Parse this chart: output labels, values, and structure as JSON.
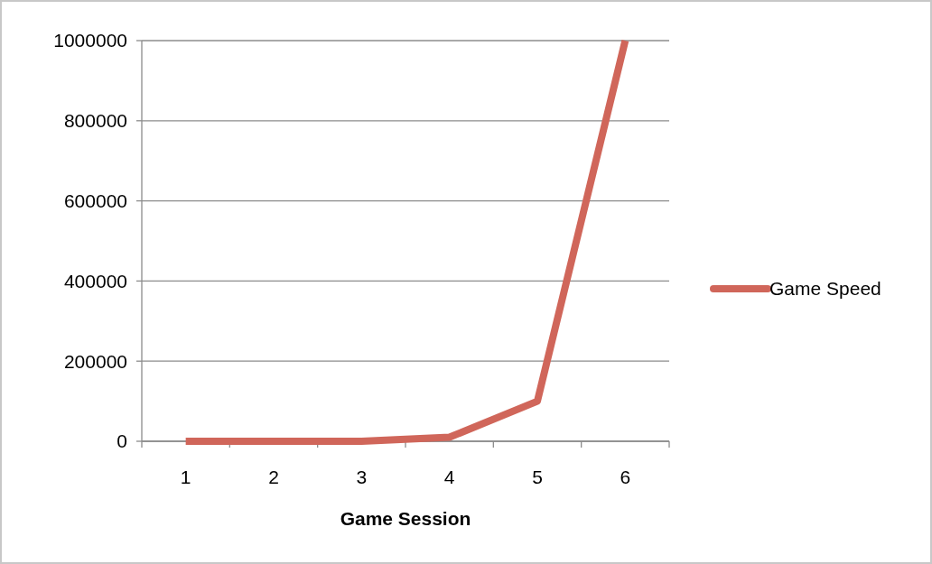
{
  "chart_data": {
    "type": "line",
    "xlabel": "Game Session",
    "categories": [
      "1",
      "2",
      "3",
      "4",
      "5",
      "6"
    ],
    "series": [
      {
        "name": "Game Speed",
        "color": "#d0665a",
        "values": [
          0,
          0,
          0,
          10000,
          100000,
          1000000
        ]
      }
    ],
    "ylim": [
      0,
      1000000
    ],
    "yticks": [
      0,
      200000,
      400000,
      600000,
      800000,
      1000000
    ],
    "grid": "y",
    "legend": "right",
    "marker": "none",
    "line_style": "solid"
  }
}
